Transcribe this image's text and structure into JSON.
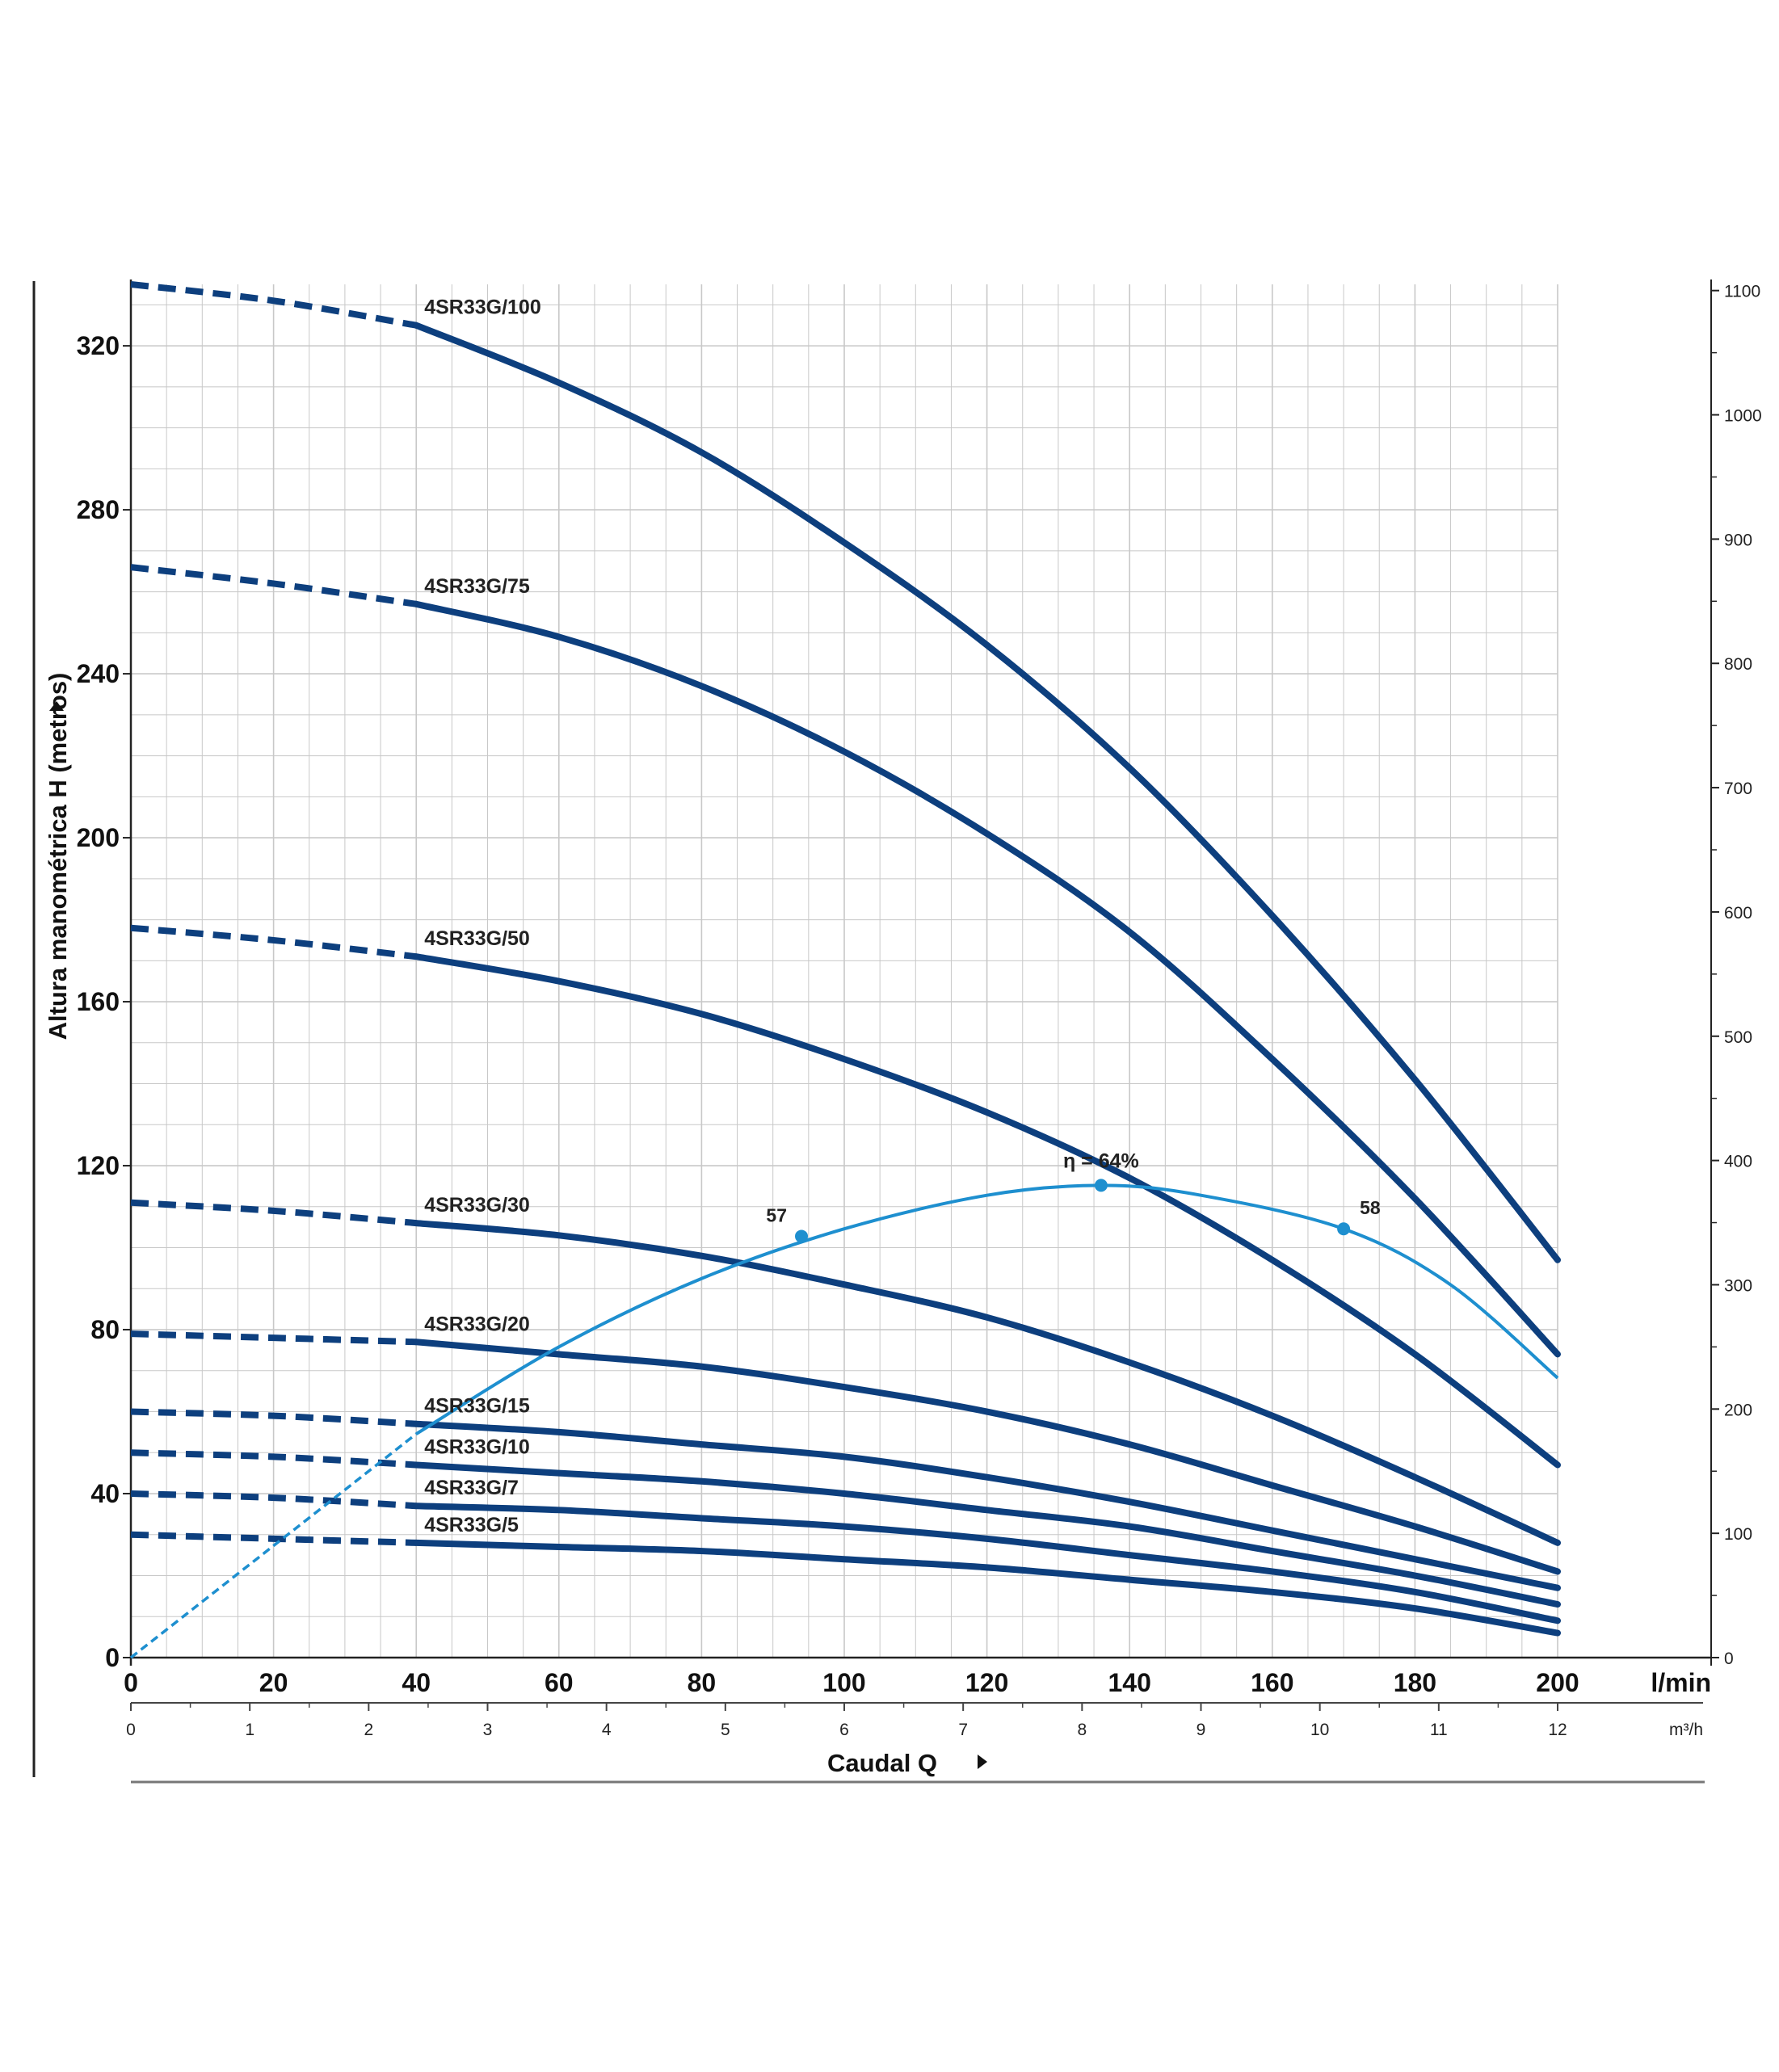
{
  "chart_data": {
    "type": "line",
    "title": "",
    "xlabel": "Caudal Q",
    "ylabel": "Altura manométrica H (metros)",
    "x_unit": "l/min",
    "x2_unit": "m³/h",
    "xlim": [
      0,
      200
    ],
    "ylim": [
      0,
      335
    ],
    "x_ticks": [
      0,
      20,
      40,
      60,
      80,
      100,
      120,
      140,
      160,
      180,
      200
    ],
    "y_ticks": [
      0,
      40,
      80,
      120,
      160,
      200,
      240,
      280,
      320
    ],
    "x2_ticks": [
      0,
      1,
      2,
      3,
      4,
      5,
      6,
      7,
      8,
      9,
      10,
      11,
      12
    ],
    "y2_ticks": [
      0,
      100,
      200,
      300,
      400,
      500,
      600,
      700,
      800,
      900,
      1000,
      1100
    ],
    "ylim2": [
      0,
      1105
    ],
    "grid": true,
    "series": [
      {
        "name": "4SR33G/100",
        "x": [
          0,
          20,
          40,
          60,
          80,
          100,
          120,
          140,
          160,
          180,
          200
        ],
        "y": [
          335,
          331,
          325,
          311,
          294,
          272,
          247,
          217,
          181,
          141,
          97
        ]
      },
      {
        "name": "4SR33G/75",
        "x": [
          0,
          20,
          40,
          60,
          80,
          100,
          120,
          140,
          160,
          180,
          200
        ],
        "y": [
          266,
          262,
          257,
          249,
          237,
          221,
          201,
          177,
          146,
          112,
          74
        ]
      },
      {
        "name": "4SR33G/50",
        "x": [
          0,
          20,
          40,
          60,
          80,
          100,
          120,
          140,
          160,
          180,
          200
        ],
        "y": [
          178,
          175,
          171,
          165,
          157,
          146,
          133,
          117,
          97,
          74,
          47
        ]
      },
      {
        "name": "4SR33G/30",
        "x": [
          0,
          20,
          40,
          60,
          80,
          100,
          120,
          140,
          160,
          180,
          200
        ],
        "y": [
          111,
          109,
          106,
          103,
          98,
          91,
          83,
          72,
          59,
          44,
          28
        ]
      },
      {
        "name": "4SR33G/20",
        "x": [
          0,
          20,
          40,
          60,
          80,
          100,
          120,
          140,
          160,
          180,
          200
        ],
        "y": [
          79,
          78,
          77,
          74,
          71,
          66,
          60,
          52,
          42,
          32,
          21
        ]
      },
      {
        "name": "4SR33G/15",
        "x": [
          0,
          20,
          40,
          60,
          80,
          100,
          120,
          140,
          160,
          180,
          200
        ],
        "y": [
          60,
          59,
          57,
          55,
          52,
          49,
          44,
          38,
          31,
          24,
          17
        ]
      },
      {
        "name": "4SR33G/10",
        "x": [
          0,
          20,
          40,
          60,
          80,
          100,
          120,
          140,
          160,
          180,
          200
        ],
        "y": [
          50,
          49,
          47,
          45,
          43,
          40,
          36,
          32,
          26,
          20,
          13
        ]
      },
      {
        "name": "4SR33G/7",
        "x": [
          0,
          20,
          40,
          60,
          80,
          100,
          120,
          140,
          160,
          180,
          200
        ],
        "y": [
          40,
          39,
          37,
          36,
          34,
          32,
          29,
          25,
          21,
          16,
          9
        ]
      },
      {
        "name": "4SR33G/5",
        "x": [
          0,
          20,
          40,
          60,
          80,
          100,
          120,
          140,
          160,
          180,
          200
        ],
        "y": [
          30,
          29,
          28,
          27,
          26,
          24,
          22,
          19,
          16,
          12,
          6
        ]
      }
    ],
    "efficiency_curve": {
      "x": [
        0,
        20,
        40,
        60,
        80,
        100,
        120,
        136,
        150,
        170,
        185,
        200
      ],
      "y": [
        0,
        90,
        180,
        250,
        305,
        345,
        372,
        380,
        372,
        345,
        300,
        225
      ],
      "annotations": [
        {
          "text": "η = 64%",
          "x": 136,
          "y": 380
        },
        {
          "text": "57",
          "x": 94,
          "y": 339
        },
        {
          "text": "58",
          "x": 170,
          "y": 345
        }
      ]
    },
    "colors": {
      "pump_curve": "#0d3f7e",
      "efficiency_curve": "#1e8fcf",
      "grid": "#c8c8c8"
    }
  }
}
